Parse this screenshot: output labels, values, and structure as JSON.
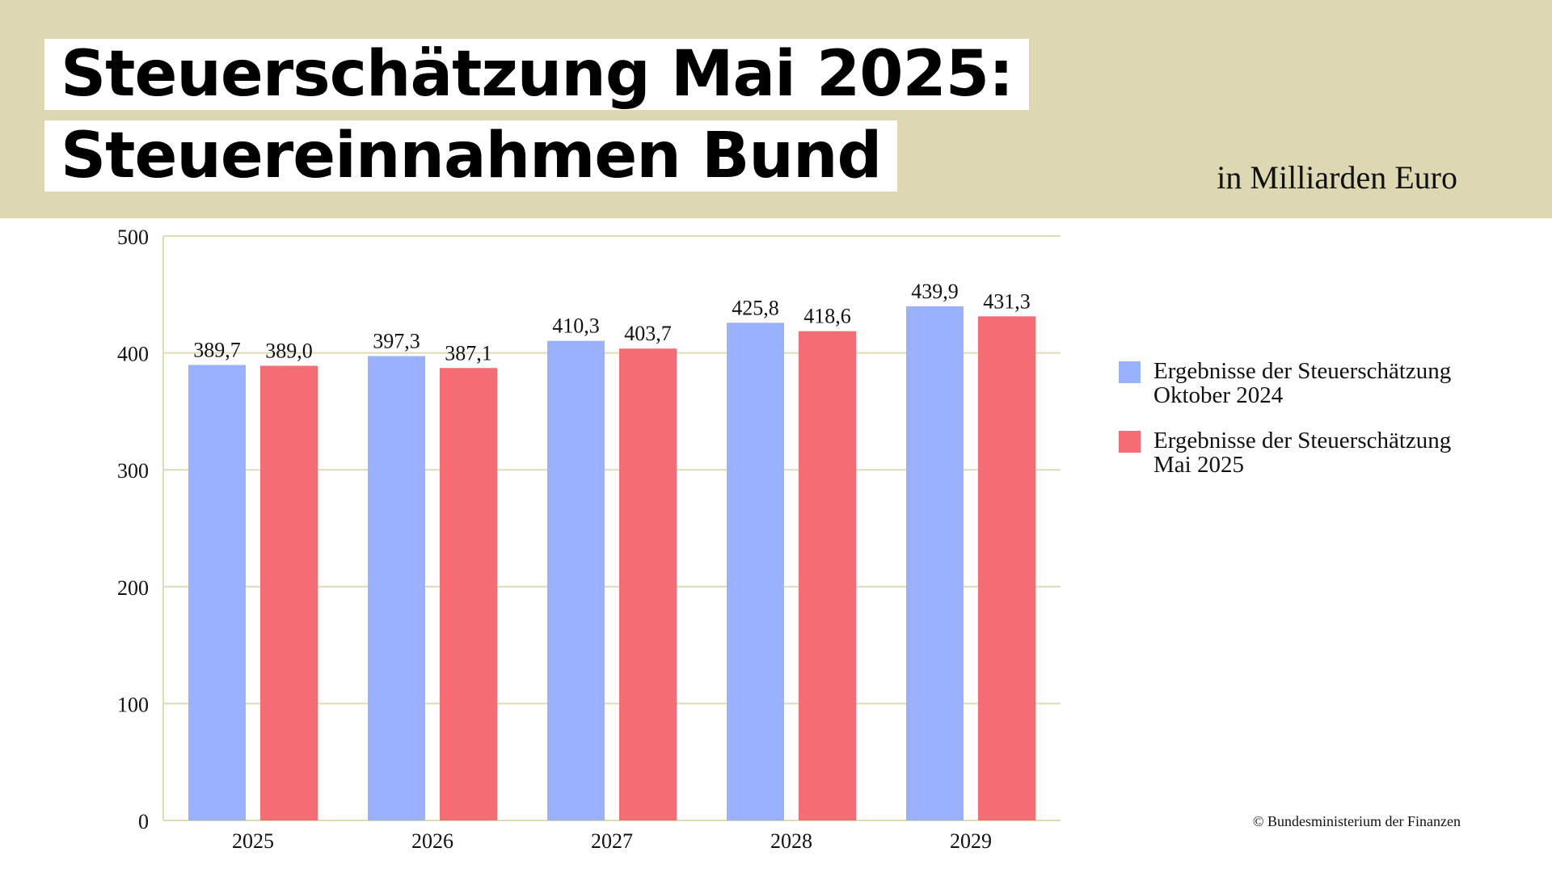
{
  "title_lines": [
    "Steuerschätzung Mai 2025:",
    "Steuereinnahmen Bund"
  ],
  "unit_label": "in Milliarden Euro",
  "copyright": "© Bundesministerium der Finanzen",
  "colors": {
    "header_background": "#ddd8b1",
    "gridline": "#dedbb5",
    "oktober_2024": "#99b1ff",
    "mai_2025": "#f46d75"
  },
  "chart_data": {
    "type": "bar",
    "title": "Steuerschätzung Mai 2025: Steuereinnahmen Bund",
    "ylabel": "in Milliarden Euro",
    "categories": [
      "2025",
      "2026",
      "2027",
      "2028",
      "2029"
    ],
    "series": [
      {
        "name": "Ergebnisse der Steuerschätzung Oktober 2024",
        "legend_lines": [
          "Ergebnisse der Steuerschätzung",
          "Oktober 2024"
        ],
        "values": [
          389.7,
          397.3,
          410.3,
          425.8,
          439.9
        ],
        "value_labels": [
          "389,7",
          "397,3",
          "410,3",
          "425,8",
          "439,9"
        ],
        "color": "#99b1ff"
      },
      {
        "name": "Ergebnisse der Steuerschätzung Mai 2025",
        "legend_lines": [
          "Ergebnisse der Steuerschätzung",
          "Mai 2025"
        ],
        "values": [
          389.0,
          387.1,
          403.7,
          418.6,
          431.3
        ],
        "value_labels": [
          "389,0",
          "387,1",
          "403,7",
          "418,6",
          "431,3"
        ],
        "color": "#f46d75"
      }
    ],
    "ylim": [
      0,
      500
    ],
    "yticks": [
      "0",
      "100",
      "200",
      "300",
      "400",
      "500"
    ],
    "grid": true,
    "legend_position": "right"
  }
}
